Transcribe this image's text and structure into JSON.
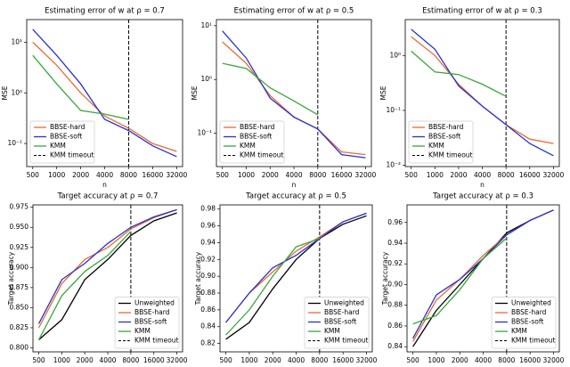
{
  "chart_data": [
    {
      "type": "line",
      "title": "Estimating error of w at ρ = 0.7",
      "xlabel": "n",
      "ylabel": "MSE",
      "yscale": "log",
      "xscale": "log",
      "x": [
        500,
        1000,
        2000,
        4000,
        8000,
        16000,
        32000
      ],
      "xlim": [
        420,
        38000
      ],
      "xticks": [
        500,
        1000,
        2000,
        4000,
        8000,
        16000,
        32000
      ],
      "ylim": [
        0.035,
        28
      ],
      "yticks": [
        {
          "value": 10,
          "label": "10¹"
        },
        {
          "value": 1,
          "label": "10⁰"
        },
        {
          "value": 0.1,
          "label": "10⁻¹"
        }
      ],
      "legend": "lower left",
      "vline": {
        "name": "KMM timeout",
        "x": 8000
      },
      "series": [
        {
          "name": "BBSE-hard",
          "color": "#ee6a2f",
          "values": [
            10,
            3.5,
            1.0,
            0.35,
            0.2,
            0.1,
            0.07
          ]
        },
        {
          "name": "BBSE-soft",
          "color": "#2333d6",
          "values": [
            18,
            5.5,
            1.5,
            0.3,
            0.18,
            0.09,
            0.055
          ]
        },
        {
          "name": "KMM",
          "color": "#3aa63a",
          "values": [
            5.5,
            1.5,
            0.45,
            0.38,
            0.3,
            null,
            null
          ]
        }
      ]
    },
    {
      "type": "line",
      "title": "Estimating error of w at ρ = 0.5",
      "xlabel": "n",
      "ylabel": "MSE",
      "yscale": "log",
      "xscale": "log",
      "x": [
        500,
        1000,
        2000,
        4000,
        8000,
        16000,
        32000
      ],
      "xlim": [
        420,
        38000
      ],
      "xticks": [
        500,
        1000,
        2000,
        4000,
        8000,
        16000,
        32000
      ],
      "ylim": [
        0.024,
        13
      ],
      "yticks": [
        {
          "value": 10,
          "label": "10¹"
        },
        {
          "value": 1,
          "label": "10⁰"
        },
        {
          "value": 0.1,
          "label": "10⁻¹"
        }
      ],
      "legend": "lower left",
      "vline": {
        "name": "KMM timeout",
        "x": 8000
      },
      "series": [
        {
          "name": "BBSE-hard",
          "color": "#ee6a2f",
          "values": [
            5,
            2,
            0.5,
            0.2,
            0.12,
            0.045,
            0.04
          ]
        },
        {
          "name": "BBSE-soft",
          "color": "#2333d6",
          "values": [
            8,
            2.5,
            0.45,
            0.2,
            0.12,
            0.04,
            0.035
          ]
        },
        {
          "name": "KMM",
          "color": "#3aa63a",
          "values": [
            2,
            1.6,
            0.7,
            0.4,
            0.22,
            null,
            null
          ]
        }
      ]
    },
    {
      "type": "line",
      "title": "Estimating error of w at ρ = 0.3",
      "xlabel": "n",
      "ylabel": "MSE",
      "yscale": "log",
      "xscale": "log",
      "x": [
        500,
        1000,
        2000,
        4000,
        8000,
        16000,
        32000
      ],
      "xlim": [
        420,
        38000
      ],
      "xticks": [
        500,
        1000,
        2000,
        4000,
        8000,
        16000,
        32000
      ],
      "ylim": [
        0.0095,
        4.5
      ],
      "yticks": [
        {
          "value": 1,
          "label": "10⁰"
        },
        {
          "value": 0.1,
          "label": "10⁻¹"
        },
        {
          "value": 0.01,
          "label": "10⁻²"
        }
      ],
      "legend": "lower left",
      "vline": {
        "name": "KMM timeout",
        "x": 8000
      },
      "series": [
        {
          "name": "BBSE-hard",
          "color": "#ee6a2f",
          "values": [
            2.2,
            1.0,
            0.3,
            0.12,
            0.055,
            0.03,
            0.025
          ]
        },
        {
          "name": "BBSE-soft",
          "color": "#2333d6",
          "values": [
            3,
            1.3,
            0.28,
            0.12,
            0.055,
            0.025,
            0.015
          ]
        },
        {
          "name": "KMM",
          "color": "#3aa63a",
          "values": [
            1.2,
            0.5,
            0.45,
            0.3,
            0.18,
            null,
            null
          ]
        }
      ]
    },
    {
      "type": "line",
      "title": "Target accuracy at ρ = 0.7",
      "xlabel": "n",
      "ylabel": "Target accuracy",
      "xscale": "log",
      "x": [
        500,
        1000,
        2000,
        4000,
        8000,
        16000,
        32000
      ],
      "xlim": [
        420,
        38000
      ],
      "xticks": [
        500,
        1000,
        2000,
        4000,
        8000,
        16000,
        32000
      ],
      "ylim": [
        0.795,
        0.978
      ],
      "yticks": [
        {
          "value": 0.8,
          "label": "0.800"
        },
        0.825,
        {
          "value": 0.85,
          "label": "0.850"
        },
        0.875,
        {
          "value": 0.9,
          "label": "0.900"
        },
        0.925,
        {
          "value": 0.95,
          "label": "0.950"
        },
        0.975
      ],
      "legend": "lower right",
      "vline": {
        "name": "KMM timeout",
        "x": 8000
      },
      "series": [
        {
          "name": "Unweighted",
          "color": "#000000",
          "values": [
            0.81,
            0.835,
            0.885,
            0.91,
            0.94,
            0.958,
            0.968
          ]
        },
        {
          "name": "BBSE-hard",
          "color": "#ee6a2f",
          "values": [
            0.825,
            0.88,
            0.91,
            0.925,
            0.948,
            0.962,
            0.972
          ]
        },
        {
          "name": "BBSE-soft",
          "color": "#2333d6",
          "values": [
            0.83,
            0.885,
            0.905,
            0.93,
            0.95,
            0.963,
            0.972
          ]
        },
        {
          "name": "KMM",
          "color": "#3aa63a",
          "values": [
            0.81,
            0.865,
            0.895,
            0.915,
            0.945,
            null,
            null
          ]
        }
      ]
    },
    {
      "type": "line",
      "title": "Target accuracy at ρ = 0.5",
      "xlabel": "n",
      "ylabel": "Target accuracy",
      "xscale": "log",
      "x": [
        500,
        1000,
        2000,
        4000,
        8000,
        16000,
        32000
      ],
      "xlim": [
        420,
        38000
      ],
      "xticks": [
        500,
        1000,
        2000,
        4000,
        8000,
        16000,
        32000
      ],
      "ylim": [
        0.81,
        0.985
      ],
      "yticks": [
        0.82,
        0.84,
        0.86,
        0.88,
        {
          "value": 0.9,
          "label": "0.90"
        },
        0.92,
        0.94,
        0.96,
        0.98
      ],
      "legend": "lower right",
      "vline": {
        "name": "KMM timeout",
        "x": 8000
      },
      "series": [
        {
          "name": "Unweighted",
          "color": "#000000",
          "values": [
            0.825,
            0.845,
            0.885,
            0.92,
            0.945,
            0.962,
            0.972
          ]
        },
        {
          "name": "BBSE-hard",
          "color": "#ee6a2f",
          "values": [
            0.845,
            0.88,
            0.905,
            0.93,
            0.947,
            0.965,
            0.975
          ]
        },
        {
          "name": "BBSE-soft",
          "color": "#2333d6",
          "values": [
            0.845,
            0.88,
            0.91,
            0.925,
            0.945,
            0.965,
            0.975
          ]
        },
        {
          "name": "KMM",
          "color": "#3aa63a",
          "values": [
            0.83,
            0.86,
            0.9,
            0.935,
            0.945,
            null,
            null
          ]
        }
      ]
    },
    {
      "type": "line",
      "title": "Target accuracy at ρ = 0.3",
      "xlabel": "n",
      "ylabel": "Target accuracy",
      "xscale": "log",
      "x": [
        500,
        1000,
        2000,
        4000,
        8000,
        16000,
        32000
      ],
      "xlim": [
        420,
        38000
      ],
      "xticks": [
        500,
        1000,
        2000,
        4000,
        8000,
        16000,
        32000
      ],
      "ylim": [
        0.835,
        0.977
      ],
      "yticks": [
        0.84,
        0.86,
        0.88,
        {
          "value": 0.9,
          "label": "0.90"
        },
        0.92,
        0.94,
        0.96
      ],
      "legend": "lower right",
      "vline": {
        "name": "KMM timeout",
        "x": 8000
      },
      "series": [
        {
          "name": "Unweighted",
          "color": "#000000",
          "values": [
            0.84,
            0.875,
            0.9,
            0.925,
            0.95,
            0.962,
            0.972
          ]
        },
        {
          "name": "BBSE-hard",
          "color": "#ee6a2f",
          "values": [
            0.845,
            0.885,
            0.905,
            0.928,
            0.948,
            0.962,
            0.972
          ]
        },
        {
          "name": "BBSE-soft",
          "color": "#2333d6",
          "values": [
            0.848,
            0.89,
            0.905,
            0.925,
            0.948,
            0.962,
            0.972
          ]
        },
        {
          "name": "KMM",
          "color": "#3aa63a",
          "values": [
            0.862,
            0.87,
            0.895,
            0.925,
            0.945,
            null,
            null
          ]
        }
      ]
    }
  ]
}
